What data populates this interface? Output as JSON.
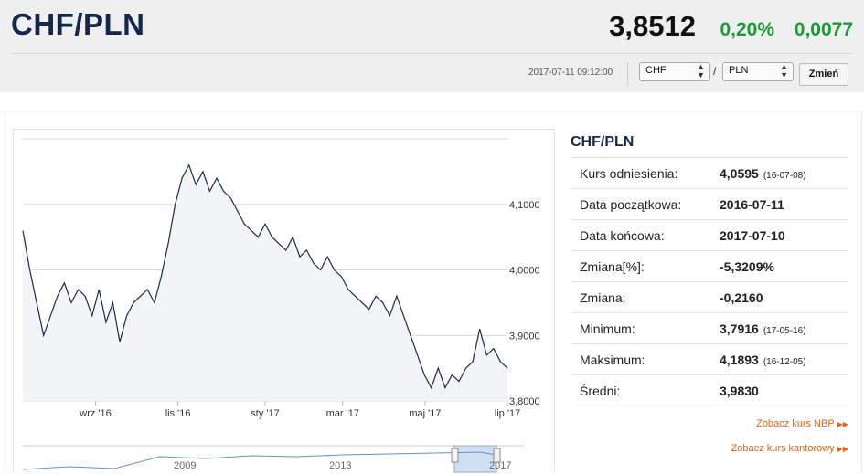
{
  "header": {
    "pair": "CHF/PLN",
    "rate": "3,8512",
    "change_pct": "0,20%",
    "change_abs": "0,0077",
    "timestamp": "2017-07-11 09:12:00",
    "base_currency": "CHF",
    "separator": "/",
    "quote_currency": "PLN",
    "submit_label": "Zmień"
  },
  "info": {
    "title": "CHF/PLN",
    "rows": [
      {
        "label": "Kurs odniesienia:",
        "value": "4,0595",
        "date": "(16-07-08)"
      },
      {
        "label": "Data początkowa:",
        "value": "2016-07-11",
        "date": ""
      },
      {
        "label": "Data końcowa:",
        "value": "2017-07-10",
        "date": ""
      },
      {
        "label": "Zmiana[%]:",
        "value": "-5,3209%",
        "date": ""
      },
      {
        "label": "Zmiana:",
        "value": "-0,2160",
        "date": ""
      },
      {
        "label": "Minimum:",
        "value": "3,7916",
        "date": "(17-05-16)"
      },
      {
        "label": "Maksimum:",
        "value": "4,1893",
        "date": "(16-12-05)"
      },
      {
        "label": "Średni:",
        "value": "3,9830",
        "date": ""
      }
    ],
    "link_nbp": "Zobacz kurs NBP",
    "link_kantor": "Zobacz kurs kantorowy"
  },
  "colors": {
    "title": "#14284b",
    "positive": "#1a9a3a",
    "link": "#e0641a",
    "line": "#1c2b45"
  },
  "chart_data": {
    "type": "line",
    "ylim": [
      3.8,
      4.2
    ],
    "y_ticks": [
      {
        "value": 4.1,
        "label": "4,1000"
      },
      {
        "value": 4.0,
        "label": "4,0000"
      },
      {
        "value": 3.9,
        "label": "3,9000"
      },
      {
        "value": 3.8,
        "label": "3,8000"
      }
    ],
    "x_ticks": [
      "wrz '16",
      "lis '16",
      "sty '17",
      "mar '17",
      "maj '17",
      "lip '17"
    ],
    "x_tick_pos": [
      0.15,
      0.32,
      0.5,
      0.66,
      0.83,
      1.0
    ],
    "series": [
      {
        "values": [
          4.06,
          4.0,
          3.95,
          3.9,
          3.93,
          3.96,
          3.98,
          3.95,
          3.97,
          3.96,
          3.93,
          3.97,
          3.92,
          3.95,
          3.89,
          3.93,
          3.95,
          3.96,
          3.97,
          3.95,
          3.99,
          4.04,
          4.1,
          4.14,
          4.16,
          4.13,
          4.15,
          4.12,
          4.14,
          4.12,
          4.11,
          4.09,
          4.07,
          4.06,
          4.05,
          4.07,
          4.05,
          4.04,
          4.03,
          4.05,
          4.02,
          4.03,
          4.01,
          4.0,
          4.02,
          4.0,
          3.99,
          3.97,
          3.96,
          3.95,
          3.94,
          3.96,
          3.95,
          3.93,
          3.96,
          3.93,
          3.9,
          3.87,
          3.84,
          3.82,
          3.85,
          3.82,
          3.84,
          3.83,
          3.85,
          3.86,
          3.91,
          3.87,
          3.88,
          3.86,
          3.85
        ]
      }
    ],
    "navigator": {
      "x_labels": [
        "2009",
        "2013",
        "2017"
      ]
    }
  }
}
